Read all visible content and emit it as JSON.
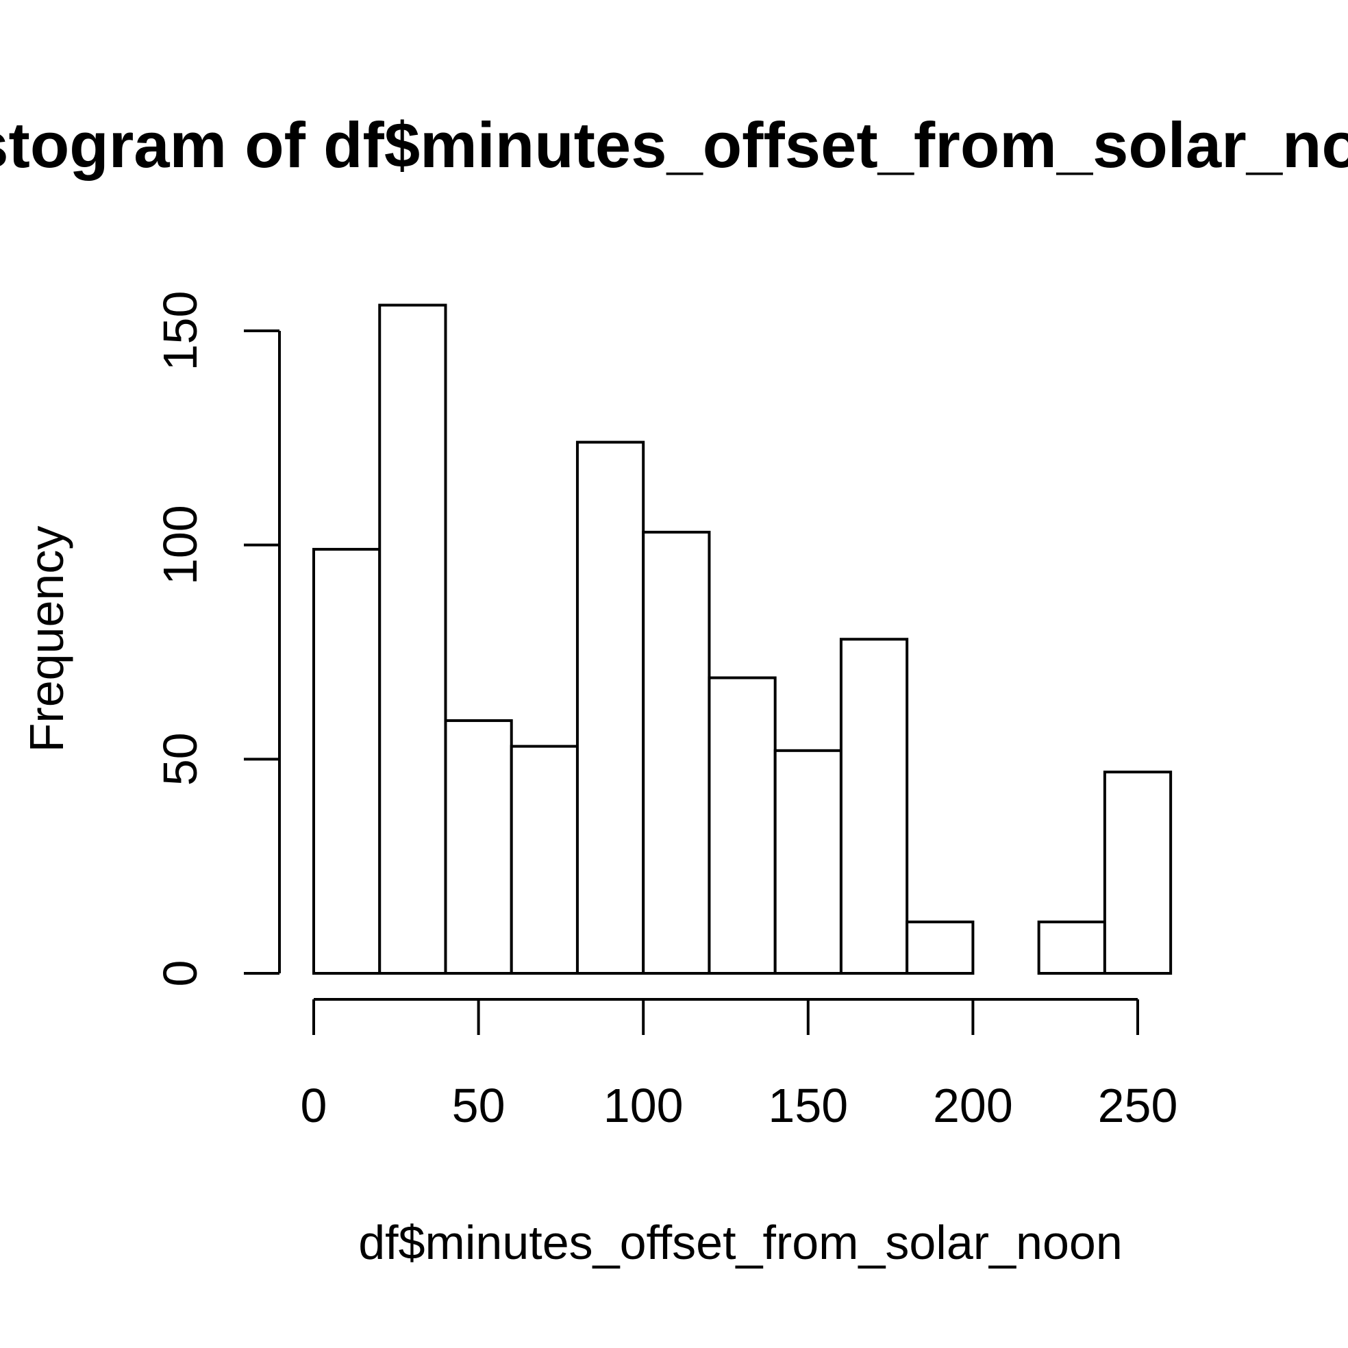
{
  "chart_data": {
    "type": "histogram",
    "title": "Histogram of df$minutes_offset_from_solar_noon",
    "xlabel": "df$minutes_offset_from_solar_noon",
    "ylabel": "Frequency",
    "bins": [
      {
        "start": 0,
        "end": 20,
        "count": 99
      },
      {
        "start": 20,
        "end": 40,
        "count": 156
      },
      {
        "start": 40,
        "end": 60,
        "count": 59
      },
      {
        "start": 60,
        "end": 80,
        "count": 53
      },
      {
        "start": 80,
        "end": 100,
        "count": 124
      },
      {
        "start": 100,
        "end": 120,
        "count": 103
      },
      {
        "start": 120,
        "end": 140,
        "count": 69
      },
      {
        "start": 140,
        "end": 160,
        "count": 52
      },
      {
        "start": 160,
        "end": 180,
        "count": 78
      },
      {
        "start": 180,
        "end": 200,
        "count": 12
      },
      {
        "start": 200,
        "end": 220,
        "count": 0
      },
      {
        "start": 220,
        "end": 240,
        "count": 12
      },
      {
        "start": 240,
        "end": 260,
        "count": 47
      }
    ],
    "x_ticks": [
      0,
      50,
      100,
      150,
      200,
      250
    ],
    "y_ticks": [
      0,
      50,
      100,
      150
    ],
    "xlim": [
      0,
      260
    ],
    "ylim": [
      0,
      156
    ],
    "grid": false,
    "legend": "none",
    "bar_fill": "#ffffff",
    "bar_stroke": "#000000"
  }
}
